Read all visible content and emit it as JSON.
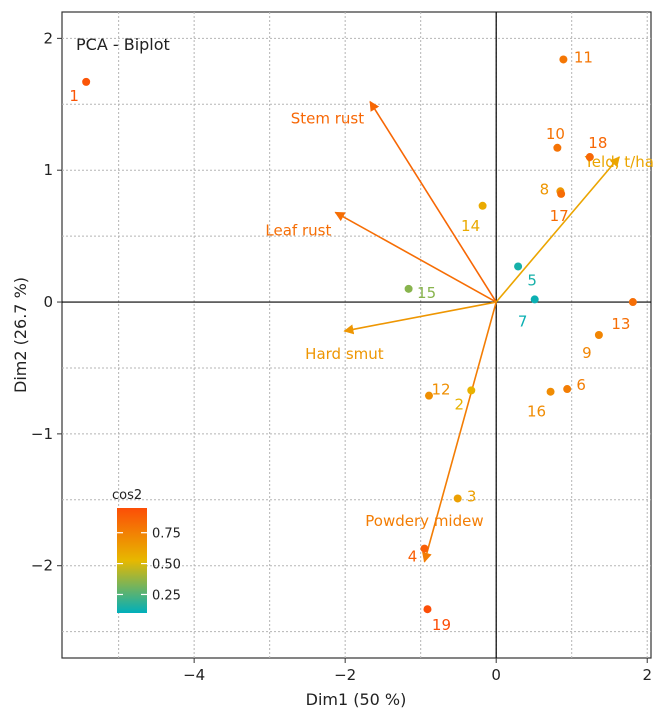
{
  "chart_data": {
    "type": "scatter",
    "title": "PCA - Biplot",
    "xlabel": "Dim1 (50 %)",
    "ylabel": "Dim2 (26.7 %)",
    "xlim": [
      -5.75,
      2.05
    ],
    "ylim": [
      -2.7,
      2.2
    ],
    "xticks": [
      -4,
      -2,
      0,
      2
    ],
    "xtick_labels": [
      "−4",
      "−2",
      "0",
      "2"
    ],
    "yticks": [
      -2,
      -1,
      0,
      1,
      2
    ],
    "ytick_labels": [
      "−2",
      "−1",
      "0",
      "1",
      "2"
    ],
    "grid": "dotted",
    "individuals": [
      {
        "label": "1",
        "x": -5.43,
        "y": 1.67,
        "cos2": 0.92
      },
      {
        "label": "2",
        "x": -0.33,
        "y": -0.67,
        "cos2": 0.55
      },
      {
        "label": "3",
        "x": -0.51,
        "y": -1.49,
        "cos2": 0.62
      },
      {
        "label": "4",
        "x": -0.95,
        "y": -1.87,
        "cos2": 0.88
      },
      {
        "label": "5",
        "x": 0.29,
        "y": 0.27,
        "cos2": 0.14
      },
      {
        "label": "6",
        "x": 0.94,
        "y": -0.66,
        "cos2": 0.76
      },
      {
        "label": "7",
        "x": 0.51,
        "y": 0.02,
        "cos2": 0.12
      },
      {
        "label": "8",
        "x": 0.85,
        "y": 0.84,
        "cos2": 0.66
      },
      {
        "label": "9",
        "x": 1.36,
        "y": -0.25,
        "cos2": 0.73
      },
      {
        "label": "10",
        "x": 0.81,
        "y": 1.17,
        "cos2": 0.8
      },
      {
        "label": "11",
        "x": 0.89,
        "y": 1.84,
        "cos2": 0.79
      },
      {
        "label": "12",
        "x": -0.89,
        "y": -0.71,
        "cos2": 0.69
      },
      {
        "label": "13",
        "x": 1.81,
        "y": 0.0,
        "cos2": 0.82
      },
      {
        "label": "14",
        "x": -0.18,
        "y": 0.73,
        "cos2": 0.58
      },
      {
        "label": "15",
        "x": -1.16,
        "y": 0.1,
        "cos2": 0.35
      },
      {
        "label": "16",
        "x": 0.72,
        "y": -0.68,
        "cos2": 0.7
      },
      {
        "label": "17",
        "x": 0.86,
        "y": 0.82,
        "cos2": 0.83
      },
      {
        "label": "18",
        "x": 1.24,
        "y": 1.1,
        "cos2": 0.85
      },
      {
        "label": "19",
        "x": -0.91,
        "y": -2.33,
        "cos2": 0.95
      }
    ],
    "variables": [
      {
        "name": "Stem rust",
        "x": -1.67,
        "y": 1.52,
        "cos2": 0.85
      },
      {
        "name": "Leaf rust",
        "x": -2.13,
        "y": 0.68,
        "cos2": 0.82
      },
      {
        "name": "Hard smut",
        "x": -2.01,
        "y": -0.22,
        "cos2": 0.66
      },
      {
        "name": "Powdery midew",
        "x": -0.95,
        "y": -1.97,
        "cos2": 0.76
      },
      {
        "name": "Yeld, t/ha",
        "x": 1.63,
        "y": 1.1,
        "cos2": 0.6
      }
    ],
    "legend": {
      "title": "cos2",
      "position": "bottom-left",
      "ticks": [
        0.25,
        0.5,
        0.75
      ],
      "tick_labels": [
        "0.25",
        "0.50",
        "0.75"
      ],
      "range": [
        0.1,
        0.95
      ],
      "gradient": [
        "#00AFBB",
        "#E7B800",
        "#FC4E07"
      ]
    }
  }
}
